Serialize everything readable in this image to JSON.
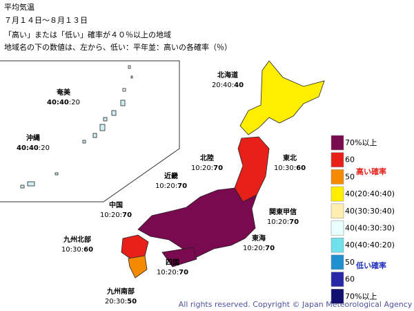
{
  "header": {
    "title": "平均気温",
    "period": "７月１４日～８月１３日",
    "subtitle": "「高い」または「低い」確率が４０％以上の地域",
    "note": "地域名の下の数値は、左から、低い：平年並：高いの各確率（％）"
  },
  "regions": [
    {
      "name": "北海道",
      "parts": [
        {
          "t": "20:40:"
        },
        {
          "t": "40",
          "b": true
        }
      ]
    },
    {
      "name": "東北",
      "parts": [
        {
          "t": "10:30:"
        },
        {
          "t": "60",
          "b": true
        }
      ]
    },
    {
      "name": "北陸",
      "parts": [
        {
          "t": "10:20:"
        },
        {
          "t": "70",
          "b": true
        }
      ]
    },
    {
      "name": "近畿",
      "parts": [
        {
          "t": "10:20:"
        },
        {
          "t": "70",
          "b": true
        }
      ]
    },
    {
      "name": "関東甲信",
      "parts": [
        {
          "t": "10:20:"
        },
        {
          "t": "70",
          "b": true
        }
      ]
    },
    {
      "name": "中国",
      "parts": [
        {
          "t": "10:20:"
        },
        {
          "t": "70",
          "b": true
        }
      ]
    },
    {
      "name": "東海",
      "parts": [
        {
          "t": "10:20:"
        },
        {
          "t": "70",
          "b": true
        }
      ]
    },
    {
      "name": "九州北部",
      "parts": [
        {
          "t": "10:30:"
        },
        {
          "t": "60",
          "b": true
        }
      ]
    },
    {
      "name": "四国",
      "parts": [
        {
          "t": "10:20:"
        },
        {
          "t": "70",
          "b": true
        }
      ]
    },
    {
      "name": "九州南部",
      "parts": [
        {
          "t": "20:30:"
        },
        {
          "t": "50",
          "b": true
        }
      ]
    },
    {
      "name": "奄美",
      "parts": [
        {
          "t": "40:40",
          "b": true
        },
        {
          "t": ":20"
        }
      ]
    },
    {
      "name": "沖縄",
      "parts": [
        {
          "t": "40:40",
          "b": true
        },
        {
          "t": ":20"
        }
      ]
    }
  ],
  "legend": {
    "items": [
      "70%以上",
      "60",
      "50",
      "40(20:40:40)",
      "40(30:30:40)",
      "40(40:30:30)",
      "40(40:40:20)",
      "50",
      "60",
      "70%以上"
    ],
    "high": "高い確率",
    "low": "低い確率"
  },
  "footer": "All rights reserved. Copyright © Japan Meteorological Agency"
}
